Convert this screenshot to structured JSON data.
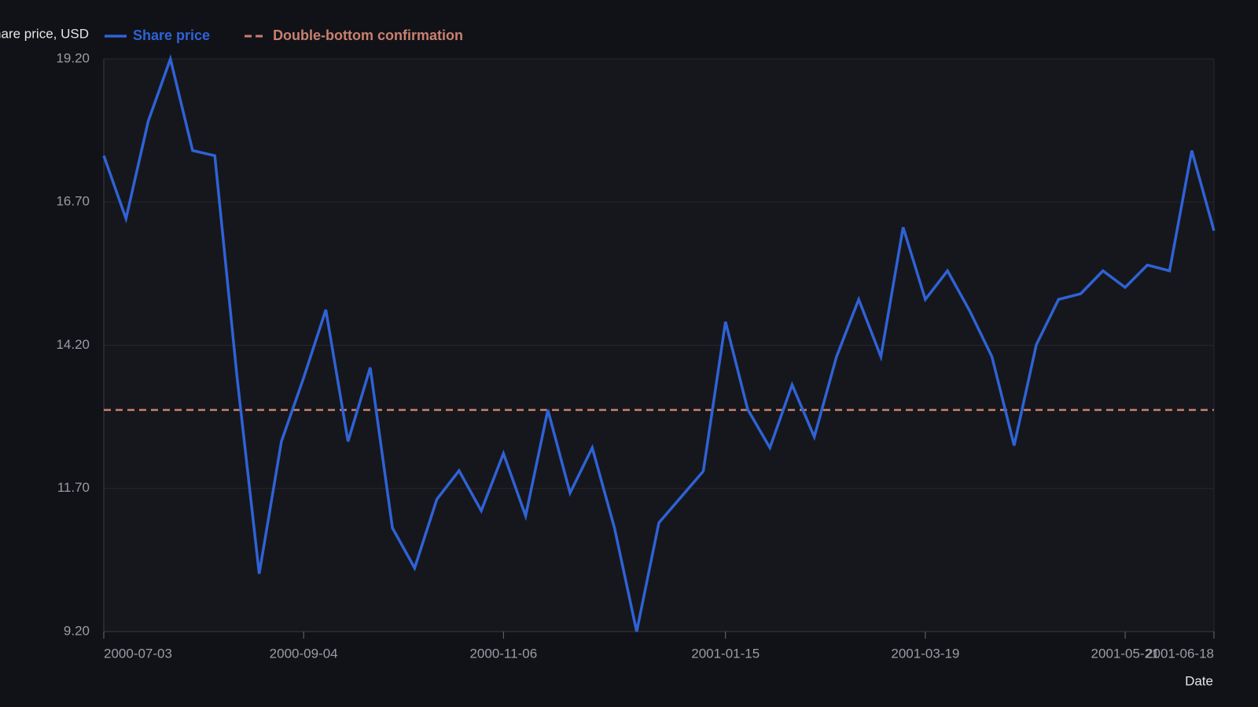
{
  "chart_data": {
    "type": "line",
    "y_label": "Share price, USD",
    "x_label": "Date",
    "x": [
      "2000-07-03",
      "2000-07-10",
      "2000-07-17",
      "2000-07-24",
      "2000-07-31",
      "2000-08-07",
      "2000-08-14",
      "2000-08-21",
      "2000-08-28",
      "2000-09-04",
      "2000-09-11",
      "2000-09-18",
      "2000-09-25",
      "2000-10-02",
      "2000-10-09",
      "2000-10-16",
      "2000-10-23",
      "2000-10-30",
      "2000-11-06",
      "2000-11-13",
      "2000-11-20",
      "2000-11-27",
      "2000-12-04",
      "2000-12-11",
      "2000-12-18",
      "2000-12-25",
      "2001-01-01",
      "2001-01-08",
      "2001-01-15",
      "2001-01-22",
      "2001-01-29",
      "2001-02-05",
      "2001-02-12",
      "2001-02-19",
      "2001-02-26",
      "2001-03-05",
      "2001-03-12",
      "2001-03-19",
      "2001-03-26",
      "2001-04-02",
      "2001-04-09",
      "2001-04-16",
      "2001-04-23",
      "2001-04-30",
      "2001-05-07",
      "2001-05-14",
      "2001-05-21",
      "2001-05-28",
      "2001-06-04",
      "2001-06-11",
      "2001-06-18"
    ],
    "series": [
      {
        "name": "Share price",
        "color": "#2f62d6",
        "values": [
          17.51,
          16.41,
          18.11,
          19.2,
          17.6,
          17.51,
          13.65,
          10.21,
          12.52,
          13.63,
          14.82,
          12.52,
          13.81,
          11.01,
          10.31,
          11.51,
          12.01,
          11.31,
          12.31,
          11.22,
          13.07,
          11.62,
          12.41,
          11.01,
          9.2,
          11.1,
          11.55,
          12.0,
          14.61,
          13.08,
          12.41,
          13.51,
          12.6,
          14.0,
          15.0,
          14.0,
          16.26,
          15.0,
          15.5,
          14.8,
          14.0,
          12.45,
          14.21,
          15.0,
          15.1,
          15.5,
          15.21,
          15.6,
          15.5,
          17.6,
          16.2
        ]
      }
    ],
    "reference_lines": [
      {
        "name": "Double-bottom confirmation",
        "value": 13.07,
        "color": "#c98070",
        "dashed": true
      }
    ],
    "xlim": [
      "2000-07-03",
      "2001-06-18"
    ],
    "xticks": [
      "2000-07-03",
      "2000-09-04",
      "2000-11-06",
      "2001-01-15",
      "2001-03-19",
      "2001-05-21",
      "2001-06-18"
    ],
    "ylim": [
      9.2,
      19.2
    ],
    "yticks": [
      {
        "value": 9.2,
        "label": "9.20"
      },
      {
        "value": 11.7,
        "label": "11.70"
      },
      {
        "value": 14.2,
        "label": "14.20"
      },
      {
        "value": 16.7,
        "label": "16.70"
      },
      {
        "value": 19.2,
        "label": "19.20"
      }
    ],
    "grid": true
  }
}
